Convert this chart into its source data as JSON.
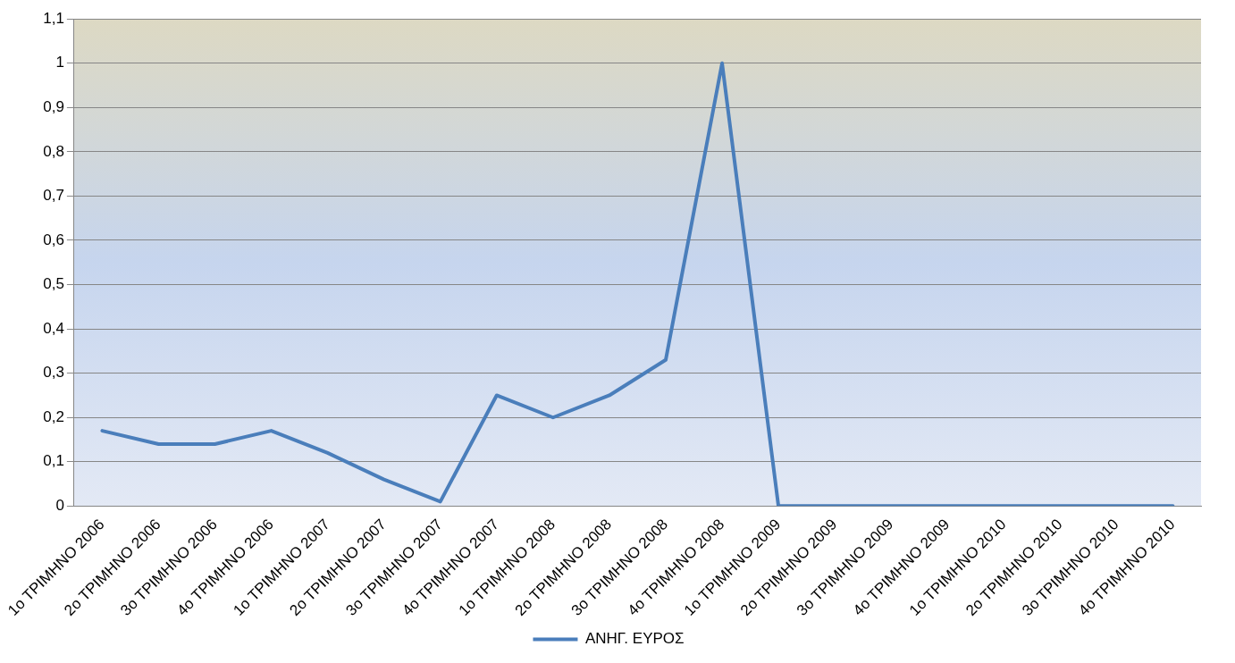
{
  "chart_data": {
    "type": "line",
    "categories": [
      "1ο ΤΡΙΜΗΝΟ 2006",
      "2ο ΤΡΙΜΗΝΟ 2006",
      "3ο ΤΡΙΜΗΝΟ 2006",
      "4ο ΤΡΙΜΗΝΟ 2006",
      "1ο ΤΡΙΜΗΝΟ 2007",
      "2ο ΤΡΙΜΗΝΟ 2007",
      "3ο ΤΡΙΜΗΝΟ 2007",
      "4ο ΤΡΙΜΗΝΟ 2007",
      "1ο ΤΡΙΜΗΝΟ 2008",
      "2ο ΤΡΙΜΗΝΟ 2008",
      "3ο ΤΡΙΜΗΝΟ 2008",
      "4ο ΤΡΙΜΗΝΟ 2008",
      "1ο ΤΡΙΜΗΝΟ 2009",
      "2ο ΤΡΙΜΗΝΟ 2009",
      "3ο ΤΡΙΜΗΝΟ 2009",
      "4ο ΤΡΙΜΗΝΟ 2009",
      "1ο ΤΡΙΜΗΝΟ 2010",
      "2ο ΤΡΙΜΗΝΟ 2010",
      "3ο ΤΡΙΜΗΝΟ 2010",
      "4ο ΤΡΙΜΗΝΟ 2010"
    ],
    "series": [
      {
        "name": "ΑΝΗΓ. ΕΥΡΟΣ",
        "color": "#4a7ebb",
        "values": [
          0.17,
          0.14,
          0.14,
          0.17,
          0.12,
          0.06,
          0.01,
          0.25,
          0.2,
          0.25,
          0.33,
          1,
          0,
          0,
          0,
          0,
          0,
          0,
          0,
          0
        ]
      }
    ],
    "ylim": [
      0,
      1.1
    ],
    "yticks": [
      0,
      {
        "value": 0.1,
        "label": "0,1"
      },
      {
        "value": 0.2,
        "label": "0,2"
      },
      {
        "value": 0.3,
        "label": "0,3"
      },
      {
        "value": 0.4,
        "label": "0,4"
      },
      {
        "value": 0.5,
        "label": "0,5"
      },
      {
        "value": 0.6,
        "label": "0,6"
      },
      {
        "value": 0.7,
        "label": "0,7"
      },
      {
        "value": 0.8,
        "label": "0,8"
      },
      {
        "value": 0.9,
        "label": "0,9"
      },
      1,
      {
        "value": 1.1,
        "label": "1,1"
      }
    ],
    "grid": "y",
    "legend": "bottom",
    "marker": "none",
    "line_style": "solid"
  }
}
